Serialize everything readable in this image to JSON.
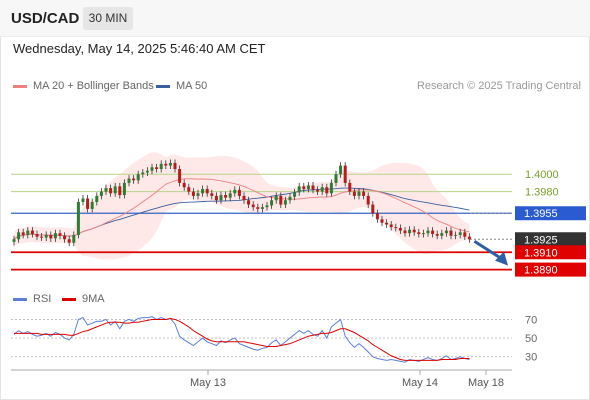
{
  "header": {
    "symbol": "USD/CAD",
    "timeframe": "30 MIN"
  },
  "datetime": "Wednesday, May 14, 2025 5:46:40 AM CET",
  "legend": {
    "ma20": {
      "label": "MA 20 + Bollinger Bands",
      "color": "#f08080"
    },
    "ma50": {
      "label": "MA 50",
      "color": "#3a5fa0"
    },
    "copyright": "Research © 2025 Trading Central"
  },
  "rsi_legend": {
    "rsi": {
      "label": "RSI",
      "color": "#5b7fd6"
    },
    "ma9": {
      "label": "9MA",
      "color": "#dd0000"
    }
  },
  "chart_data": {
    "type": "candlestick",
    "ylim": [
      1.3878,
      1.4081
    ],
    "x_labels": [
      "May 13",
      "May 14",
      "May 18"
    ],
    "levels": [
      {
        "value": 1.4,
        "label": "1.4000",
        "kind": "resistance"
      },
      {
        "value": 1.398,
        "label": "1.3980",
        "kind": "resistance"
      },
      {
        "value": 1.3955,
        "label": "1.3955",
        "kind": "pivot"
      },
      {
        "value": 1.3925,
        "label": "1.3925",
        "kind": "last"
      },
      {
        "value": 1.391,
        "label": "1.3910",
        "kind": "support"
      },
      {
        "value": 1.389,
        "label": "1.3890",
        "kind": "support"
      }
    ],
    "close_series": [
      1.3925,
      1.3933,
      1.393,
      1.3935,
      1.3931,
      1.3928,
      1.3927,
      1.393,
      1.3926,
      1.3932,
      1.3929,
      1.3925,
      1.3921,
      1.393,
      1.3968,
      1.3972,
      1.396,
      1.3968,
      1.3975,
      1.398,
      1.3984,
      1.3978,
      1.3986,
      1.3976,
      1.399,
      1.3995,
      1.3993,
      1.4,
      1.4002,
      1.4004,
      1.4008,
      1.4006,
      1.4012,
      1.401,
      1.4013,
      1.4006,
      1.399,
      1.3985,
      1.398,
      1.3975,
      1.3978,
      1.3983,
      1.3978,
      1.3975,
      1.397,
      1.3976,
      1.3973,
      1.3978,
      1.3982,
      1.3975,
      1.397,
      1.3965,
      1.3962,
      1.396,
      1.3962,
      1.3964,
      1.397,
      1.3975,
      1.3965,
      1.397,
      1.3974,
      1.3979,
      1.3986,
      1.3983,
      1.3987,
      1.3982,
      1.398,
      1.3985,
      1.3978,
      1.399,
      1.4,
      1.401,
      1.399,
      1.398,
      1.3975,
      1.398,
      1.3975,
      1.3965,
      1.3955,
      1.3948,
      1.3944,
      1.3942,
      1.3939,
      1.3938,
      1.3935,
      1.3932,
      1.3936,
      1.3933,
      1.3931,
      1.3932,
      1.3935,
      1.3931,
      1.3929,
      1.3932,
      1.3935,
      1.3929,
      1.393,
      1.3933,
      1.3928,
      1.3925
    ],
    "indicator_lines": {
      "ma20_start": 1.3917,
      "ma20_peak": 1.3995,
      "ma20_mid": 1.3972,
      "ma20_end": 1.3932,
      "ma50_start": 1.3924,
      "ma50_mid": 1.3968,
      "ma50_end": 1.3955
    }
  },
  "rsi_data": {
    "ticks": [
      "70",
      "50",
      "30"
    ],
    "tick_values": [
      70,
      50,
      30
    ],
    "ylim": [
      20,
      78
    ],
    "rsi": [
      54,
      58,
      55,
      57,
      54,
      52,
      53,
      55,
      52,
      56,
      54,
      50,
      48,
      54,
      70,
      72,
      64,
      66,
      68,
      68,
      70,
      64,
      68,
      60,
      68,
      70,
      68,
      71,
      72,
      72,
      73,
      70,
      72,
      70,
      71,
      65,
      52,
      48,
      45,
      42,
      46,
      50,
      46,
      44,
      42,
      47,
      45,
      48,
      50,
      44,
      42,
      40,
      38,
      37,
      39,
      40,
      45,
      48,
      42,
      46,
      50,
      54,
      58,
      55,
      58,
      54,
      52,
      58,
      50,
      62,
      66,
      70,
      52,
      45,
      40,
      44,
      40,
      35,
      30,
      28,
      27,
      26,
      27,
      26,
      25,
      24,
      27,
      26,
      25,
      27,
      29,
      27,
      26,
      28,
      31,
      27,
      28,
      30,
      28,
      27
    ],
    "ma9": [
      55,
      55,
      55,
      55,
      55,
      55,
      54,
      54,
      54,
      54,
      54,
      54,
      53,
      53,
      55,
      57,
      58,
      60,
      62,
      64,
      66,
      67,
      67,
      67,
      66,
      66,
      67,
      67,
      68,
      69,
      70,
      70,
      70,
      70,
      71,
      70,
      68,
      65,
      62,
      58,
      55,
      52,
      49,
      47,
      46,
      46,
      46,
      46,
      46,
      46,
      46,
      45,
      44,
      43,
      42,
      41,
      41,
      41,
      42,
      43,
      44,
      46,
      48,
      50,
      52,
      53,
      54,
      55,
      55,
      56,
      58,
      60,
      60,
      58,
      56,
      53,
      50,
      47,
      43,
      40,
      37,
      34,
      31,
      29,
      27,
      26,
      26,
      26,
      26,
      26,
      26,
      26,
      26,
      27,
      27,
      27,
      27,
      28,
      28,
      28
    ]
  }
}
